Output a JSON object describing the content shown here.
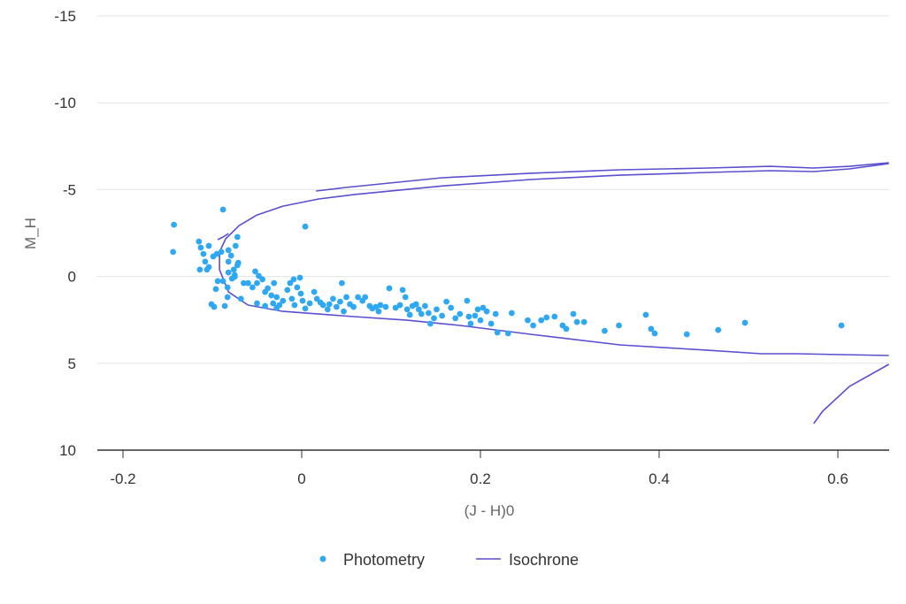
{
  "chart_data": {
    "type": "scatter",
    "title": "",
    "xlabel": "(J - H)0",
    "ylabel": "M_H",
    "xlim": [
      -0.229,
      0.658
    ],
    "ylim": [
      -15,
      10
    ],
    "y_reversed": true,
    "x_ticks": [
      -0.2,
      0,
      0.2,
      0.4,
      0.6
    ],
    "x_tick_labels": [
      "-0.2",
      "0",
      "0.2",
      "0.4",
      "0.6"
    ],
    "y_ticks": [
      -15,
      -10,
      -5,
      0,
      5,
      10
    ],
    "y_tick_labels": [
      "-15",
      "-10",
      "-5",
      "0",
      "5",
      "10"
    ],
    "grid": "horizontal",
    "legend_position": "bottom",
    "colors": {
      "photometry": "#2fa8f4",
      "isochrone": "#5a4fcf",
      "grid": "#e3e3e3",
      "axis": "#333333"
    },
    "series": [
      {
        "name": "Photometry",
        "type": "scatter",
        "points": [
          [
            -0.143,
            -2.98
          ],
          [
            -0.144,
            -1.41
          ],
          [
            -0.088,
            -3.85
          ],
          [
            0.004,
            -2.87
          ],
          [
            -0.115,
            -2.01
          ],
          [
            -0.113,
            -1.66
          ],
          [
            -0.11,
            -1.3
          ],
          [
            -0.104,
            -1.76
          ],
          [
            -0.108,
            -0.85
          ],
          [
            -0.104,
            -0.54
          ],
          [
            -0.099,
            -1.15
          ],
          [
            -0.114,
            -0.39
          ],
          [
            -0.106,
            -0.39
          ],
          [
            -0.095,
            -1.3
          ],
          [
            -0.09,
            -1.41
          ],
          [
            -0.082,
            -1.51
          ],
          [
            -0.072,
            -2.27
          ],
          [
            -0.074,
            -1.76
          ],
          [
            -0.079,
            -1.2
          ],
          [
            -0.082,
            -0.85
          ],
          [
            -0.076,
            -0.39
          ],
          [
            -0.075,
            -0.08
          ],
          [
            -0.072,
            -0.64
          ],
          [
            -0.071,
            -0.79
          ],
          [
            -0.094,
            0.27
          ],
          [
            -0.096,
            0.73
          ],
          [
            -0.088,
            0.27
          ],
          [
            -0.083,
            0.63
          ],
          [
            -0.078,
            0.12
          ],
          [
            -0.075,
            0.02
          ],
          [
            -0.082,
            -0.23
          ],
          [
            -0.101,
            1.6
          ],
          [
            -0.098,
            1.75
          ],
          [
            -0.086,
            1.7
          ],
          [
            -0.083,
            1.19
          ],
          [
            -0.068,
            1.29
          ],
          [
            -0.065,
            0.38
          ],
          [
            -0.06,
            0.38
          ],
          [
            -0.052,
            -0.29
          ],
          [
            -0.055,
            0.63
          ],
          [
            -0.048,
            -0.03
          ],
          [
            -0.044,
            0.17
          ],
          [
            -0.05,
            0.38
          ],
          [
            -0.041,
            0.89
          ],
          [
            -0.038,
            0.68
          ],
          [
            -0.031,
            0.38
          ],
          [
            -0.034,
            1.09
          ],
          [
            -0.028,
            1.19
          ],
          [
            -0.05,
            1.55
          ],
          [
            -0.041,
            1.7
          ],
          [
            -0.032,
            1.55
          ],
          [
            -0.028,
            1.8
          ],
          [
            -0.025,
            1.65
          ],
          [
            -0.021,
            1.4
          ],
          [
            -0.016,
            0.78
          ],
          [
            -0.013,
            0.38
          ],
          [
            -0.009,
            0.17
          ],
          [
            -0.005,
            0.63
          ],
          [
            -0.002,
            0.07
          ],
          [
            -0.011,
            1.29
          ],
          [
            -0.008,
            1.65
          ],
          [
            -0.001,
            0.99
          ],
          [
            0.001,
            1.4
          ],
          [
            0.004,
            1.85
          ],
          [
            0.009,
            1.55
          ],
          [
            0.014,
            0.89
          ],
          [
            0.017,
            1.29
          ],
          [
            0.021,
            1.5
          ],
          [
            0.024,
            1.65
          ],
          [
            0.029,
            1.9
          ],
          [
            0.031,
            1.6
          ],
          [
            0.035,
            1.29
          ],
          [
            0.039,
            1.75
          ],
          [
            0.043,
            1.45
          ],
          [
            0.045,
            0.38
          ],
          [
            0.047,
            2.01
          ],
          [
            0.05,
            1.19
          ],
          [
            0.054,
            1.6
          ],
          [
            0.058,
            1.75
          ],
          [
            0.063,
            1.19
          ],
          [
            0.068,
            1.4
          ],
          [
            0.071,
            1.19
          ],
          [
            0.076,
            1.7
          ],
          [
            0.079,
            1.85
          ],
          [
            0.083,
            1.75
          ],
          [
            0.086,
            2.01
          ],
          [
            0.088,
            1.65
          ],
          [
            0.094,
            1.75
          ],
          [
            0.098,
            0.68
          ],
          [
            0.105,
            1.8
          ],
          [
            0.11,
            1.65
          ],
          [
            0.113,
            0.78
          ],
          [
            0.116,
            1.19
          ],
          [
            0.118,
            1.9
          ],
          [
            0.121,
            2.21
          ],
          [
            0.124,
            1.7
          ],
          [
            0.128,
            1.6
          ],
          [
            0.131,
            1.9
          ],
          [
            0.134,
            2.16
          ],
          [
            0.138,
            1.7
          ],
          [
            0.142,
            2.11
          ],
          [
            0.144,
            2.72
          ],
          [
            0.148,
            2.41
          ],
          [
            0.151,
            1.9
          ],
          [
            0.157,
            2.26
          ],
          [
            0.162,
            1.45
          ],
          [
            0.167,
            1.8
          ],
          [
            0.172,
            2.41
          ],
          [
            0.177,
            2.16
          ],
          [
            0.185,
            1.4
          ],
          [
            0.187,
            2.31
          ],
          [
            0.189,
            2.72
          ],
          [
            0.194,
            2.26
          ],
          [
            0.197,
            1.9
          ],
          [
            0.2,
            2.52
          ],
          [
            0.203,
            1.8
          ],
          [
            0.207,
            2.01
          ],
          [
            0.212,
            2.72
          ],
          [
            0.217,
            2.16
          ],
          [
            0.219,
            3.23
          ],
          [
            0.231,
            3.28
          ],
          [
            0.235,
            2.11
          ],
          [
            0.253,
            2.52
          ],
          [
            0.259,
            2.82
          ],
          [
            0.268,
            2.52
          ],
          [
            0.274,
            2.36
          ],
          [
            0.283,
            2.31
          ],
          [
            0.292,
            2.82
          ],
          [
            0.296,
            3.02
          ],
          [
            0.304,
            2.16
          ],
          [
            0.308,
            2.62
          ],
          [
            0.316,
            2.62
          ],
          [
            0.339,
            3.13
          ],
          [
            0.355,
            2.82
          ],
          [
            0.385,
            2.21
          ],
          [
            0.391,
            3.02
          ],
          [
            0.395,
            3.28
          ],
          [
            0.431,
            3.33
          ],
          [
            0.466,
            3.08
          ],
          [
            0.496,
            2.67
          ],
          [
            0.604,
            2.82
          ]
        ]
      },
      {
        "name": "Isochrone",
        "type": "line",
        "segments": [
          [
            [
              0.657,
              4.55
            ],
            [
              0.553,
              4.45
            ],
            [
              0.514,
              4.45
            ],
            [
              0.455,
              4.25
            ],
            [
              0.356,
              3.94
            ],
            [
              0.256,
              3.33
            ],
            [
              0.177,
              2.82
            ],
            [
              0.118,
              2.52
            ],
            [
              0.058,
              2.31
            ],
            [
              -0.021,
              2.01
            ],
            [
              -0.06,
              1.65
            ],
            [
              -0.082,
              0.89
            ],
            [
              -0.092,
              -0.39
            ],
            [
              -0.092,
              -1.41
            ],
            [
              -0.085,
              -2.17
            ],
            [
              -0.07,
              -2.93
            ],
            [
              -0.05,
              -3.54
            ],
            [
              -0.021,
              -4.05
            ],
            [
              0.019,
              -4.46
            ],
            [
              0.058,
              -4.71
            ],
            [
              0.157,
              -5.21
            ],
            [
              0.256,
              -5.58
            ],
            [
              0.356,
              -5.83
            ],
            [
              0.455,
              -5.99
            ],
            [
              0.524,
              -6.09
            ],
            [
              0.573,
              -6.04
            ],
            [
              0.613,
              -6.19
            ],
            [
              0.657,
              -6.5
            ]
          ],
          [
            [
              -0.094,
              -2.12
            ],
            [
              -0.088,
              -2.27
            ],
            [
              -0.082,
              -2.47
            ]
          ],
          [
            [
              0.016,
              -4.92
            ],
            [
              0.049,
              -5.12
            ],
            [
              0.157,
              -5.68
            ],
            [
              0.256,
              -5.94
            ],
            [
              0.356,
              -6.14
            ],
            [
              0.455,
              -6.24
            ],
            [
              0.524,
              -6.34
            ],
            [
              0.573,
              -6.24
            ],
            [
              0.613,
              -6.34
            ],
            [
              0.657,
              -6.55
            ]
          ],
          [
            [
              0.573,
              8.47
            ],
            [
              0.583,
              7.76
            ],
            [
              0.613,
              6.33
            ],
            [
              0.657,
              5.06
            ]
          ]
        ]
      }
    ]
  }
}
